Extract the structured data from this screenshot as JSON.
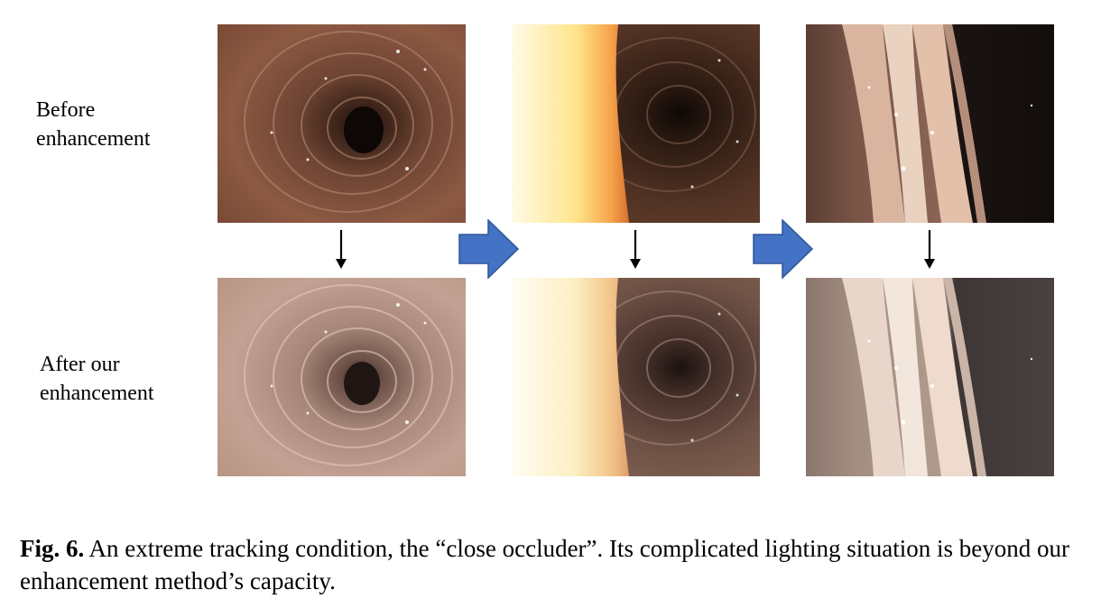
{
  "labels": {
    "before_line1": "Before",
    "before_line2": "enhancement",
    "after_line1": "After our",
    "after_line2": "enhancement"
  },
  "caption": {
    "prefix": "Fig. 6.",
    "text": "An extreme tracking condition, the “close occluder”. Its complicated lighting situation is beyond our enhancement method’s capacity."
  },
  "colors": {
    "arrow_blue": "#4472c4",
    "arrow_blue_edge": "#2f5597"
  }
}
